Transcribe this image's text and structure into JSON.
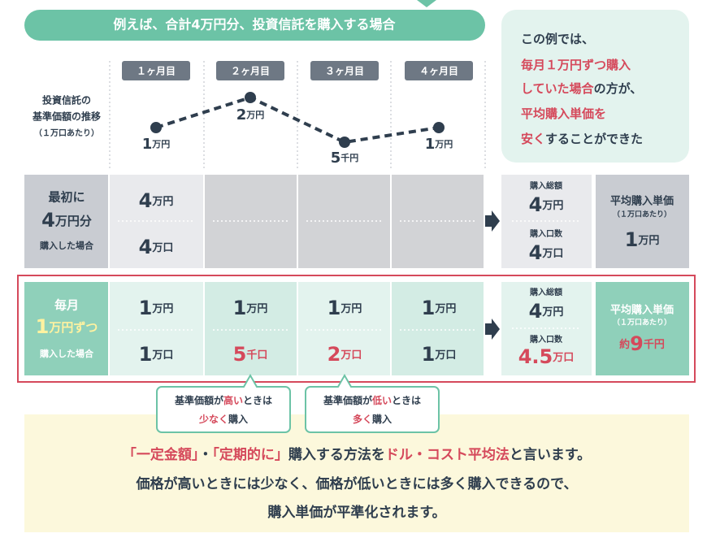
{
  "banner": "例えば、合計4万円分、投資信託を購入する場合",
  "note": {
    "lines": [
      [
        "この例では、"
      ],
      [
        "毎月１万円ずつ購入"
      ],
      [
        "していた場合",
        "の方が、"
      ],
      [
        "平均購入単価を"
      ],
      [
        "安く",
        "することができた"
      ]
    ]
  },
  "chart": {
    "label": [
      "投資信託の",
      "基準価額の推移",
      "（１万口あたり）"
    ],
    "months": [
      "１ヶ月目",
      "２ヶ月目",
      "３ヶ月目",
      "４ヶ月目"
    ],
    "points": [
      {
        "num": "1",
        "unit": "万円"
      },
      {
        "num": "2",
        "unit": "万円"
      },
      {
        "num": "5",
        "unit": "千円"
      },
      {
        "num": "1",
        "unit": "万円"
      }
    ]
  },
  "lump": {
    "label": [
      "最初に",
      {
        "num": "4",
        "unit": "万円分"
      },
      "購入した場合"
    ],
    "amount": {
      "num": "4",
      "unit": "万円"
    },
    "units": {
      "num": "4",
      "unit": "万口"
    },
    "total_label": "購入総額",
    "total": {
      "num": "4",
      "unit": "万円"
    },
    "units_label": "購入口数",
    "total_units": {
      "num": "4",
      "unit": "万口"
    },
    "avg_label": "平均購入単価",
    "avg_note": "（１万口あたり）",
    "avg": {
      "num": "1",
      "unit": "万円"
    }
  },
  "monthly": {
    "label": [
      "毎月",
      {
        "num": "1",
        "unit": "万円ずつ"
      },
      "購入した場合"
    ],
    "amounts": [
      {
        "num": "1",
        "unit": "万円"
      },
      {
        "num": "1",
        "unit": "万円"
      },
      {
        "num": "1",
        "unit": "万円"
      },
      {
        "num": "1",
        "unit": "万円"
      }
    ],
    "units": [
      {
        "num": "1",
        "unit": "万口"
      },
      {
        "num": "5",
        "unit": "千口"
      },
      {
        "num": "2",
        "unit": "万口"
      },
      {
        "num": "1",
        "unit": "万口"
      }
    ],
    "total_label": "購入総額",
    "total": {
      "num": "4",
      "unit": "万円"
    },
    "units_label": "購入口数",
    "total_units": {
      "num": "4.5",
      "unit": "万口"
    },
    "avg_label": "平均購入単価",
    "avg_note": "（１万口あたり）",
    "avg": {
      "prefix": "約",
      "num": "9",
      "unit": "千円"
    }
  },
  "callouts": [
    {
      "line1": [
        "基準価額が",
        "高い",
        "ときは"
      ],
      "line2": [
        "少なく",
        "購入"
      ]
    },
    {
      "line1": [
        "基準価額が",
        "低い",
        "ときは"
      ],
      "line2": [
        "多く",
        "購入"
      ]
    }
  ],
  "summary": [
    [
      "「一定金額」",
      "・",
      "「定期的に」",
      "購入する方法を",
      "ドル・コスト平均法",
      "と言います。"
    ],
    [
      "価格が高いときには少なく、価格が低いときには多く購入できるので、"
    ],
    [
      "購入単価が平準化されます。"
    ]
  ]
}
